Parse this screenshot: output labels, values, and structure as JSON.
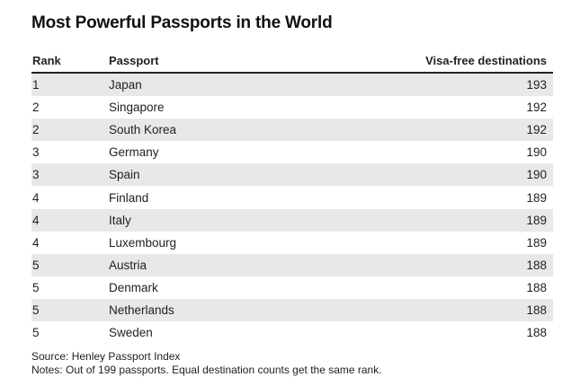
{
  "chart_data": {
    "type": "table",
    "title": "Most Powerful Passports in the World",
    "columns": [
      "Rank",
      "Passport",
      "Visa-free destinations"
    ],
    "rows": [
      {
        "rank": "1",
        "passport": "Japan",
        "destinations": "193"
      },
      {
        "rank": "2",
        "passport": "Singapore",
        "destinations": "192"
      },
      {
        "rank": "2",
        "passport": "South Korea",
        "destinations": "192"
      },
      {
        "rank": "3",
        "passport": "Germany",
        "destinations": "190"
      },
      {
        "rank": "3",
        "passport": "Spain",
        "destinations": "190"
      },
      {
        "rank": "4",
        "passport": "Finland",
        "destinations": "189"
      },
      {
        "rank": "4",
        "passport": "Italy",
        "destinations": "189"
      },
      {
        "rank": "4",
        "passport": "Luxembourg",
        "destinations": "189"
      },
      {
        "rank": "5",
        "passport": "Austria",
        "destinations": "188"
      },
      {
        "rank": "5",
        "passport": "Denmark",
        "destinations": "188"
      },
      {
        "rank": "5",
        "passport": "Netherlands",
        "destinations": "188"
      },
      {
        "rank": "5",
        "passport": "Sweden",
        "destinations": "188"
      }
    ],
    "source": "Source: Henley Passport Index",
    "notes": "Notes: Out of 199 passports. Equal destination counts get the same rank."
  }
}
